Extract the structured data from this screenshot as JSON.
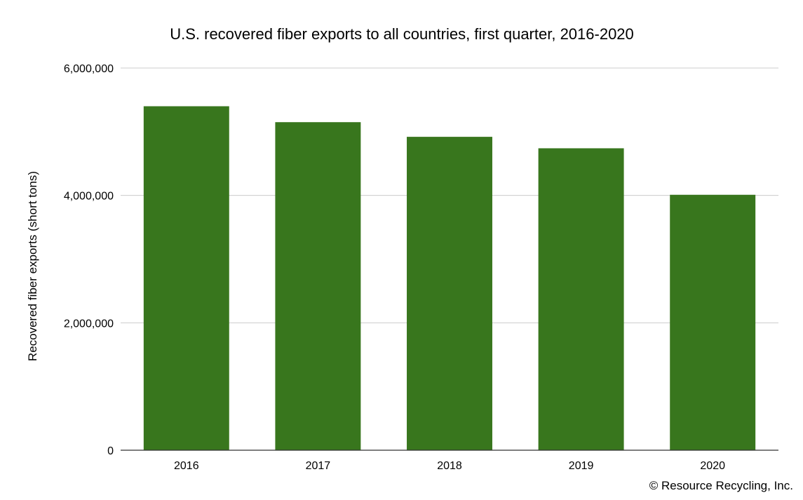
{
  "chart_data": {
    "type": "bar",
    "title": "U.S. recovered fiber exports to all countries, first quarter, 2016-2020",
    "xlabel": "",
    "ylabel": "Recovered fiber exports (short tons)",
    "categories": [
      "2016",
      "2017",
      "2018",
      "2019",
      "2020"
    ],
    "values": [
      5400000,
      5150000,
      4920000,
      4740000,
      4010000
    ],
    "ylim": [
      0,
      6000000
    ],
    "yticks": [
      0,
      2000000,
      4000000,
      6000000
    ],
    "ytick_labels": [
      "0",
      "2,000,000",
      "4,000,000",
      "6,000,000"
    ],
    "bar_color": "#38761d",
    "grid": true,
    "legend": "none"
  },
  "credit": "© Resource Recycling, Inc."
}
